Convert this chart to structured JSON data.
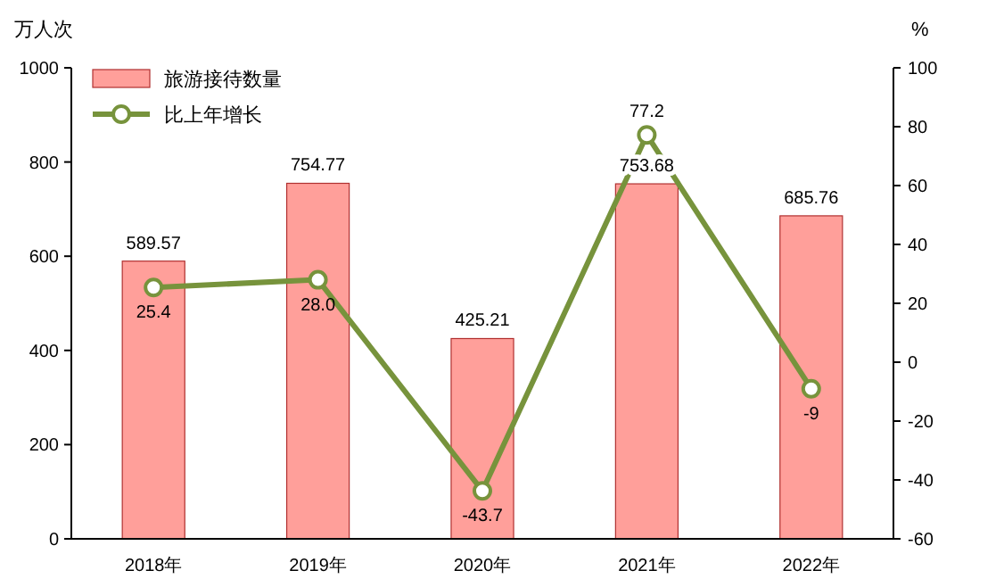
{
  "chart_data": {
    "type": "bar",
    "categories": [
      "2018年",
      "2019年",
      "2020年",
      "2021年",
      "2022年"
    ],
    "ylabel": "万人次",
    "y2label": "%",
    "ylim": [
      0,
      1000
    ],
    "yticks": [
      0,
      200,
      400,
      600,
      800,
      1000
    ],
    "y2lim": [
      -60,
      100
    ],
    "y2ticks": [
      -60,
      -40,
      -20,
      0,
      20,
      40,
      60,
      80,
      100
    ],
    "legend": "top left",
    "grid": false,
    "marker": "circle",
    "series": [
      {
        "name": "旅游接待数量",
        "color": "#ff9f9a",
        "values": [
          589.57,
          754.77,
          425.21,
          753.68,
          685.76
        ],
        "value_labels": [
          "589.57",
          "754.77",
          "425.21",
          "753.68",
          "685.76"
        ]
      },
      {
        "name": "比上年增长",
        "type": "line",
        "axis": "y2",
        "color": "#77933c",
        "values": [
          25.4,
          28.0,
          -43.7,
          77.2,
          -9
        ],
        "value_labels": [
          "25.4",
          "28.0",
          "-43.7",
          "77.2",
          "-9"
        ]
      }
    ]
  }
}
